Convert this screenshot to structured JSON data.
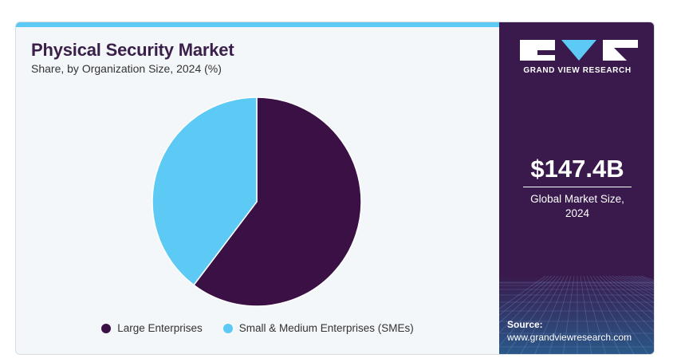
{
  "header": {
    "title": "Physical Security Market",
    "subtitle": "Share, by Organization Size, 2024 (%)"
  },
  "chart_data": {
    "type": "pie",
    "categories": [
      "Large Enterprises",
      "Small & Medium Enterprises (SMEs)"
    ],
    "values": [
      60.3,
      39.7
    ],
    "colors": [
      "#3a1045",
      "#5ccaf5"
    ],
    "legend": "bottom"
  },
  "sidebar": {
    "brand": "GRAND VIEW RESEARCH",
    "market_size": "$147.4B",
    "market_label_line1": "Global Market Size,",
    "market_label_line2": "2024",
    "source_label": "Source:",
    "source_url": "www.grandviewresearch.com",
    "background_color": "#3a1a4d"
  }
}
